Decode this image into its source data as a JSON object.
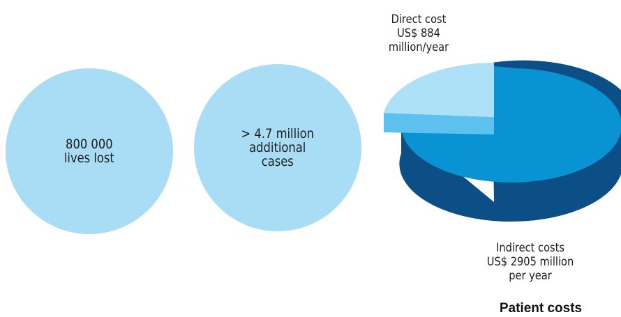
{
  "circles": [
    {
      "text": "800 000\nlives lost",
      "color": "#a9ddf6"
    },
    {
      "text": "> 4.7 million\nadditional\ncases",
      "color": "#a9ddf6"
    }
  ],
  "chart_data": {
    "type": "pie",
    "title": "Patient costs",
    "series": [
      {
        "label": "Direct cost\nUS$ 884\nmillion/year",
        "value": 884,
        "top_color": "#aee0f8",
        "side_color": "#5cc1ee"
      },
      {
        "label": "Indirect costs\nUS$ 2905 million\nper year",
        "value": 2905,
        "top_color": "#0a93d3",
        "side_color": "#0c4f87"
      }
    ]
  }
}
